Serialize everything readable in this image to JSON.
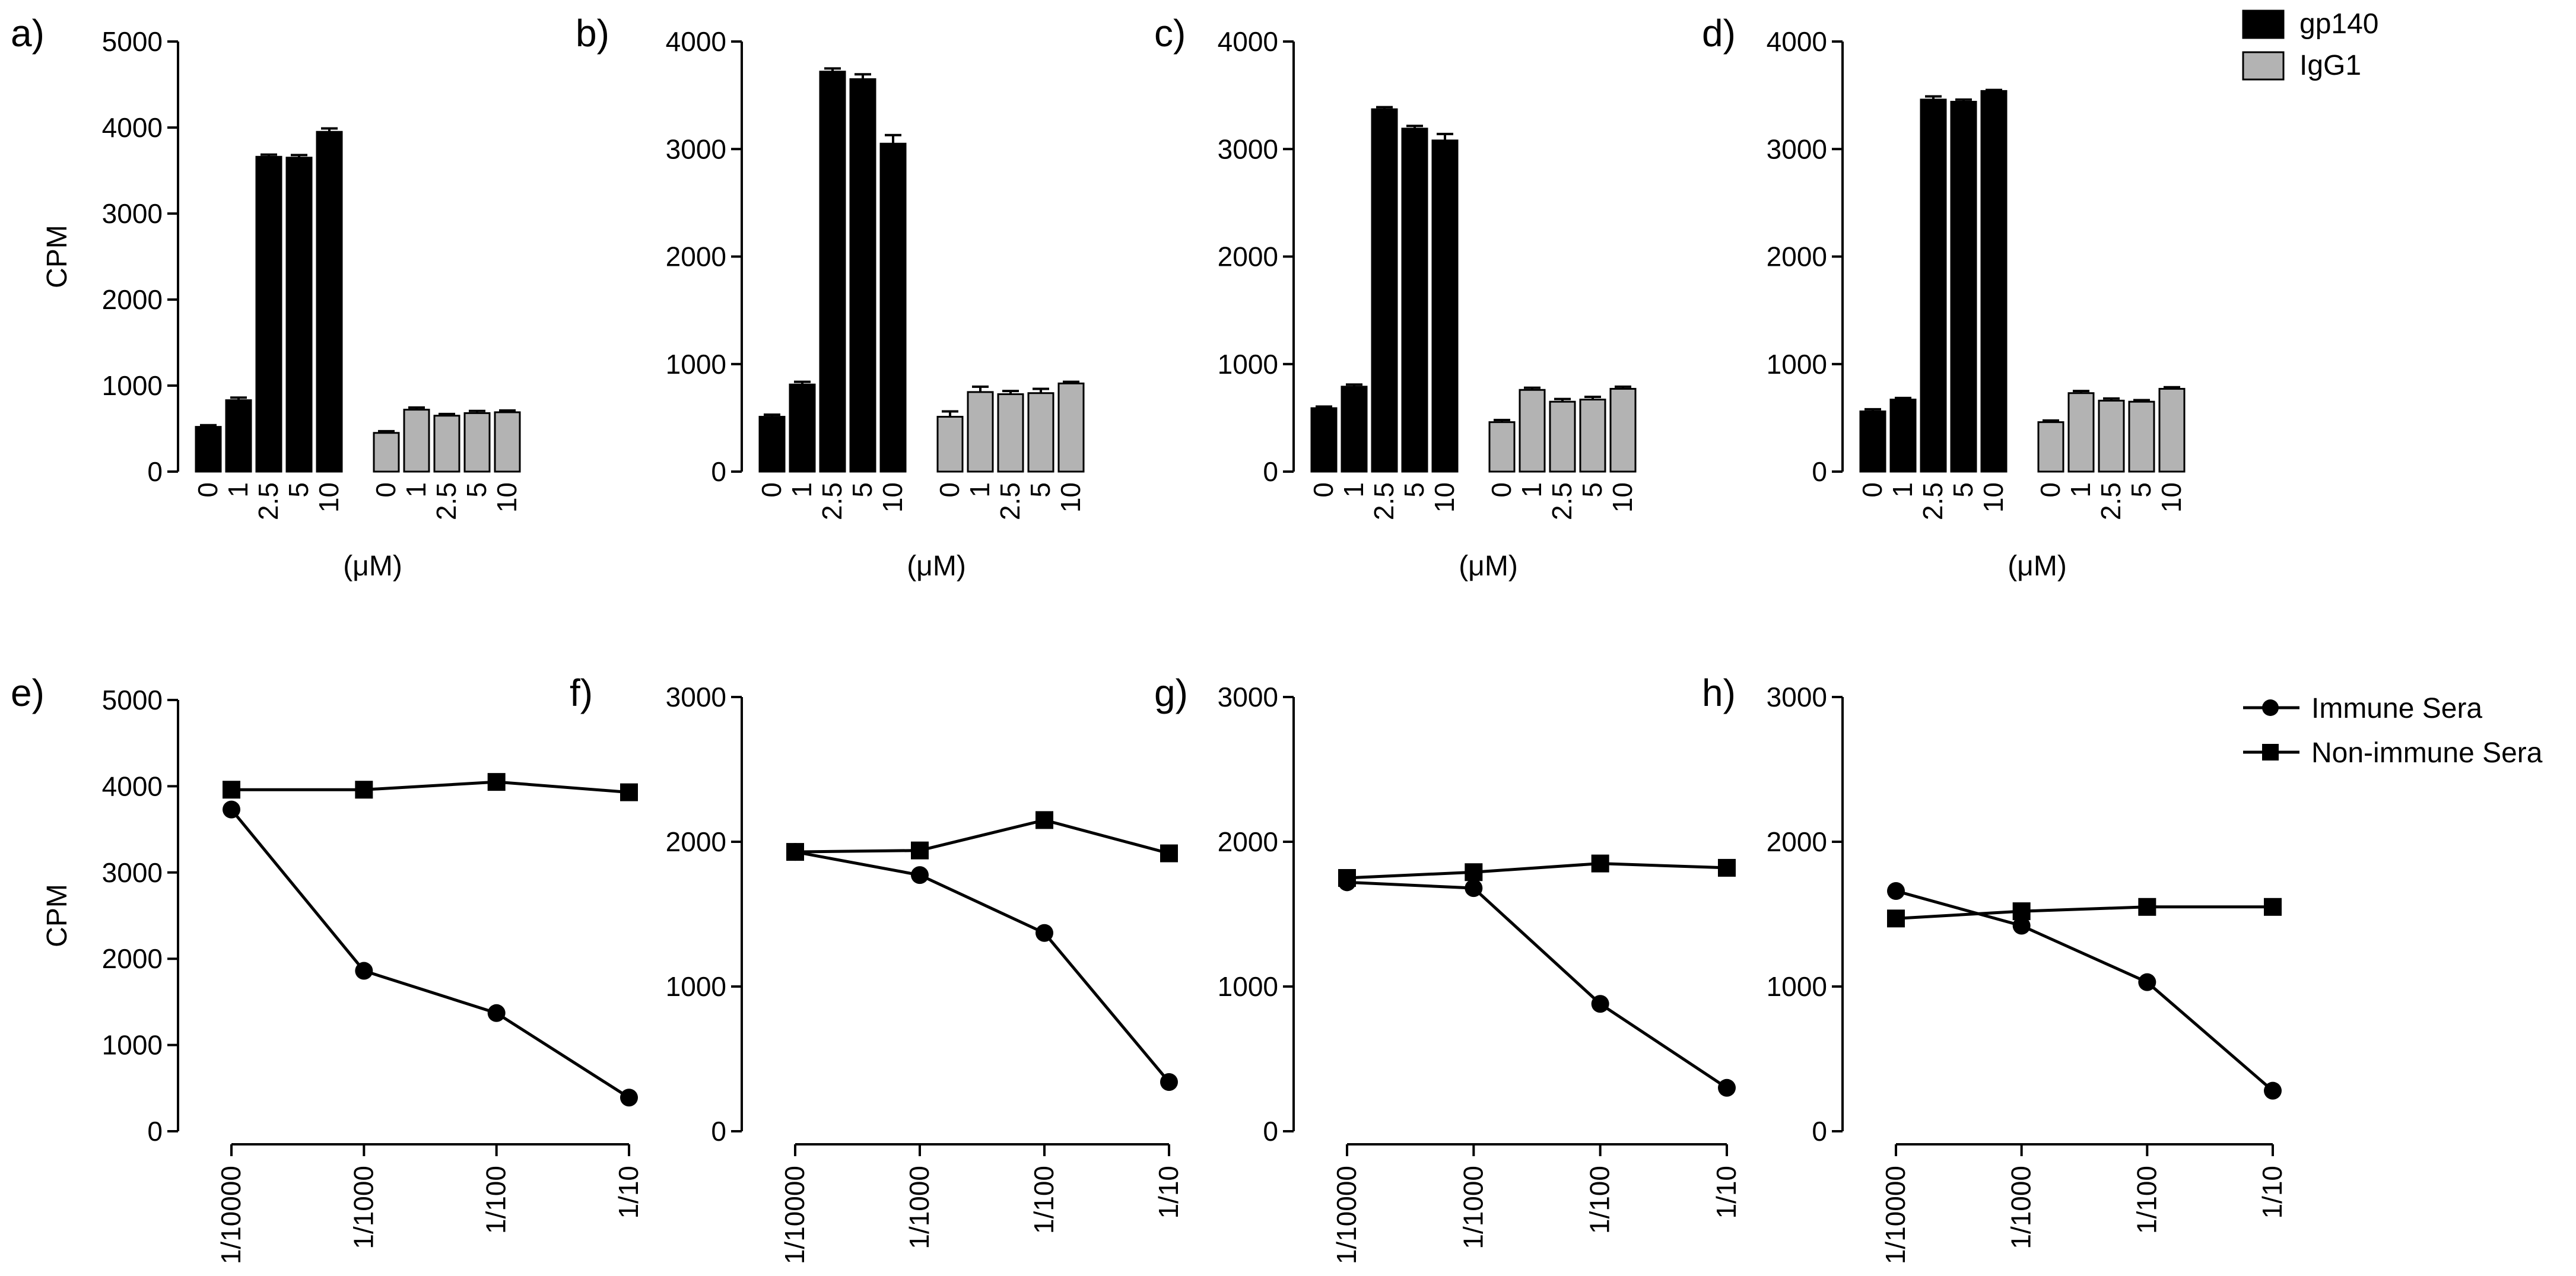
{
  "chart_data": [
    {
      "type": "bar",
      "panel_label": "a)",
      "ylabel": "CPM",
      "xlabel": "(μM)",
      "yticks": [
        0,
        1000,
        2000,
        3000,
        4000,
        5000
      ],
      "ylim": [
        0,
        5000
      ],
      "categories": [
        "0",
        "1",
        "2.5",
        "5",
        "10"
      ],
      "series": [
        {
          "name": "gp140",
          "values": [
            520,
            830,
            3660,
            3650,
            3950
          ],
          "errors": [
            20,
            30,
            25,
            30,
            40
          ]
        },
        {
          "name": "IgG1",
          "values": [
            450,
            720,
            650,
            680,
            690
          ],
          "errors": [
            20,
            25,
            20,
            25,
            20
          ]
        }
      ]
    },
    {
      "type": "bar",
      "panel_label": "b)",
      "ylabel": "",
      "xlabel": "(μM)",
      "yticks": [
        0,
        1000,
        2000,
        3000,
        4000
      ],
      "ylim": [
        0,
        4000
      ],
      "categories": [
        "0",
        "1",
        "2.5",
        "5",
        "10"
      ],
      "series": [
        {
          "name": "gp140",
          "values": [
            510,
            810,
            3720,
            3650,
            3050
          ],
          "errors": [
            20,
            25,
            30,
            45,
            80
          ]
        },
        {
          "name": "IgG1",
          "values": [
            510,
            740,
            720,
            730,
            820
          ],
          "errors": [
            50,
            50,
            30,
            40,
            15
          ]
        }
      ]
    },
    {
      "type": "bar",
      "panel_label": "c)",
      "ylabel": "",
      "xlabel": "(μM)",
      "yticks": [
        0,
        1000,
        2000,
        3000,
        4000
      ],
      "ylim": [
        0,
        4000
      ],
      "categories": [
        "0",
        "1",
        "2.5",
        "5",
        "10"
      ],
      "series": [
        {
          "name": "gp140",
          "values": [
            590,
            790,
            3370,
            3190,
            3080
          ],
          "errors": [
            15,
            20,
            20,
            25,
            60
          ]
        },
        {
          "name": "IgG1",
          "values": [
            460,
            760,
            650,
            670,
            770
          ],
          "errors": [
            20,
            20,
            25,
            25,
            20
          ]
        }
      ]
    },
    {
      "type": "bar",
      "panel_label": "d)",
      "ylabel": "",
      "xlabel": "(μM)",
      "yticks": [
        0,
        1000,
        2000,
        3000,
        4000
      ],
      "ylim": [
        0,
        4000
      ],
      "categories": [
        "0",
        "1",
        "2.5",
        "5",
        "10"
      ],
      "series": [
        {
          "name": "gp140",
          "values": [
            560,
            670,
            3460,
            3440,
            3540
          ],
          "errors": [
            20,
            15,
            30,
            20,
            10
          ]
        },
        {
          "name": "IgG1",
          "values": [
            460,
            730,
            660,
            650,
            770
          ],
          "errors": [
            15,
            20,
            20,
            15,
            15
          ]
        }
      ]
    },
    {
      "type": "line",
      "panel_label": "e)",
      "ylabel": "CPM",
      "xlabel": "",
      "yticks": [
        0,
        1000,
        2000,
        3000,
        4000,
        5000
      ],
      "ylim": [
        0,
        5000
      ],
      "x": [
        "1/10000",
        "1/1000",
        "1/100",
        "1/10"
      ],
      "series": [
        {
          "name": "Immune Sera",
          "marker": "circle",
          "values": [
            3730,
            1860,
            1370,
            390
          ]
        },
        {
          "name": "Non-immune Sera",
          "marker": "square",
          "values": [
            3960,
            3960,
            4050,
            3930
          ]
        }
      ]
    },
    {
      "type": "line",
      "panel_label": "f)",
      "ylabel": "",
      "xlabel": "",
      "yticks": [
        0,
        1000,
        2000,
        3000
      ],
      "ylim": [
        0,
        3000
      ],
      "x": [
        "1/10000",
        "1/1000",
        "1/100",
        "1/10"
      ],
      "series": [
        {
          "name": "Immune Sera",
          "marker": "circle",
          "values": [
            1930,
            1770,
            1370,
            340
          ]
        },
        {
          "name": "Non-immune Sera",
          "marker": "square",
          "values": [
            1930,
            1940,
            2150,
            1920
          ]
        }
      ]
    },
    {
      "type": "line",
      "panel_label": "g)",
      "ylabel": "",
      "xlabel": "",
      "yticks": [
        0,
        1000,
        2000,
        3000
      ],
      "ylim": [
        0,
        3000
      ],
      "x": [
        "1/10000",
        "1/1000",
        "1/100",
        "1/10"
      ],
      "series": [
        {
          "name": "Immune Sera",
          "marker": "circle",
          "values": [
            1720,
            1680,
            880,
            300
          ]
        },
        {
          "name": "Non-immune Sera",
          "marker": "square",
          "values": [
            1750,
            1790,
            1850,
            1820
          ]
        }
      ]
    },
    {
      "type": "line",
      "panel_label": "h)",
      "ylabel": "",
      "xlabel": "",
      "yticks": [
        0,
        1000,
        2000,
        3000
      ],
      "ylim": [
        0,
        3000
      ],
      "x": [
        "1/10000",
        "1/1000",
        "1/100",
        "1/10"
      ],
      "series": [
        {
          "name": "Immune Sera",
          "marker": "circle",
          "values": [
            1660,
            1420,
            1030,
            280
          ]
        },
        {
          "name": "Non-immune Sera",
          "marker": "square",
          "values": [
            1470,
            1520,
            1550,
            1550
          ]
        }
      ]
    }
  ],
  "legends": {
    "bar": [
      {
        "label": "gp140",
        "color": "#000000"
      },
      {
        "label": "IgG1",
        "color": "#b3b3b3"
      }
    ],
    "line": [
      {
        "label": "Immune Sera",
        "marker": "circle"
      },
      {
        "label": "Non-immune Sera",
        "marker": "square"
      }
    ]
  }
}
